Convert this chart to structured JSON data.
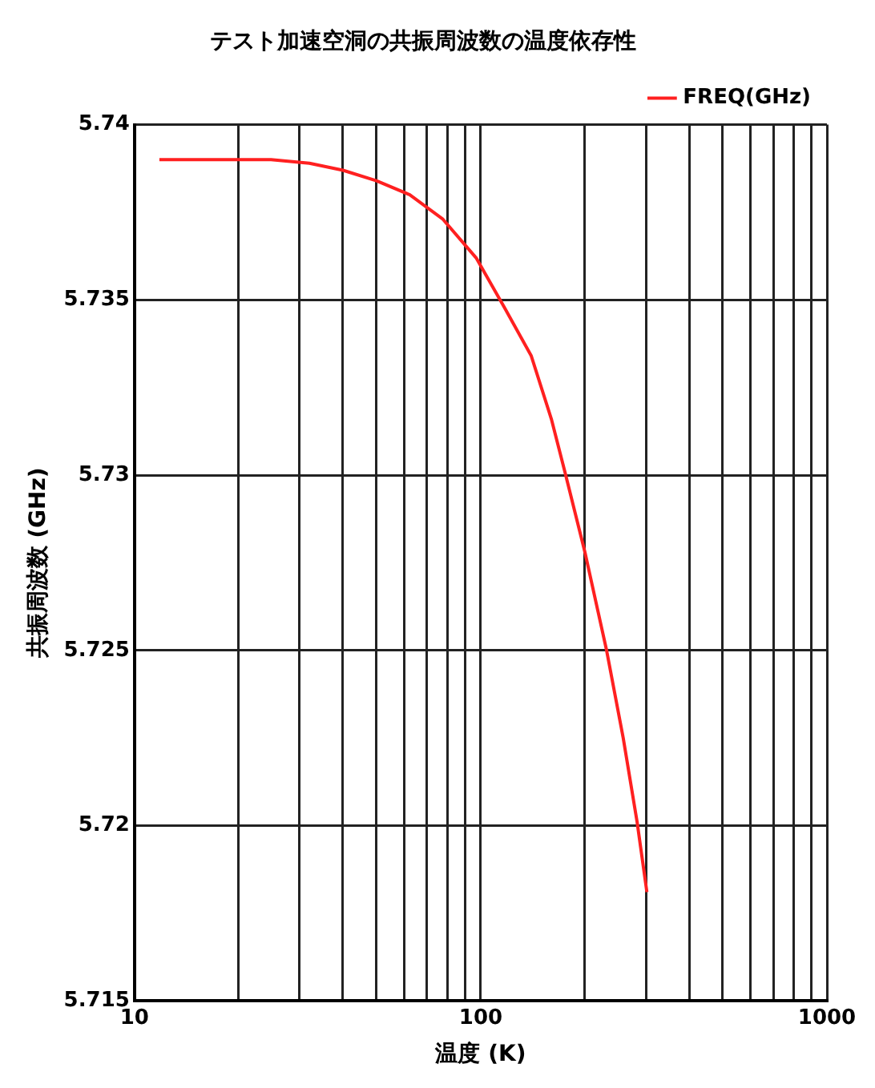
{
  "chart_data": {
    "type": "line",
    "title": "テスト加速空洞の共振周波数の温度依存性",
    "xlabel": "温度 (K)",
    "ylabel": "共振周波数 (GHz)",
    "log": "x",
    "grid": true,
    "legend": "top right",
    "marker": "none",
    "line_style": "solid",
    "xlim": [
      10,
      1000
    ],
    "xticks": [
      10,
      {
        "value": 20,
        "label": null
      },
      {
        "value": 30,
        "label": null
      },
      {
        "value": 40,
        "label": null
      },
      {
        "value": 50,
        "label": null
      },
      {
        "value": 60,
        "label": null
      },
      {
        "value": 70,
        "label": null
      },
      {
        "value": 80,
        "label": null
      },
      {
        "value": 90,
        "label": null
      },
      100,
      {
        "value": 200,
        "label": null
      },
      {
        "value": 300,
        "label": null
      },
      {
        "value": 400,
        "label": null
      },
      {
        "value": 500,
        "label": null
      },
      {
        "value": 600,
        "label": null
      },
      {
        "value": 700,
        "label": null
      },
      {
        "value": 800,
        "label": null
      },
      {
        "value": 900,
        "label": null
      },
      1000
    ],
    "ylim": [
      5.715,
      5.74
    ],
    "yticks": [
      5.715,
      5.72,
      5.725,
      5.73,
      5.735,
      5.74
    ],
    "series": [
      {
        "name": "FREQ(GHz)",
        "color": "#ff2020",
        "x": [
          11.8,
          24.8,
          32,
          40,
          50,
          62.4,
          77.8,
          97,
          116.8,
          140,
          160,
          175,
          200,
          231,
          258,
          283,
          302
        ],
        "values": [
          5.739,
          5.739,
          5.7389,
          5.7387,
          5.7384,
          5.738,
          5.7373,
          5.7362,
          5.7348,
          5.7334,
          5.7316,
          5.7301,
          5.7278,
          5.725,
          5.7225,
          5.7201,
          5.7181
        ]
      }
    ]
  }
}
